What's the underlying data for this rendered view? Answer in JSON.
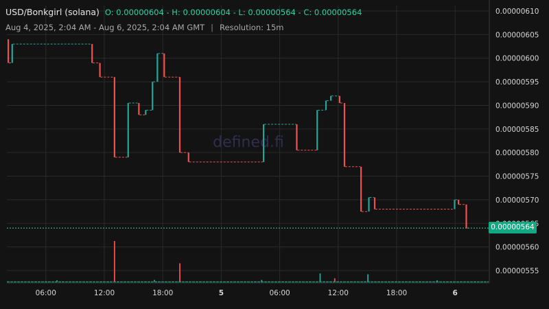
{
  "header": {
    "symbol": "USD/Bonkgirl (solana)",
    "ohlc": "O: 0.00000604 - H: 0.00000604 - L: 0.00000564 - C: 0.00000564",
    "range": "Aug 4, 2025, 2:04 AM - Aug 6, 2025, 2:04 AM GMT",
    "separator": "|",
    "resolution": "Resolution: 15m"
  },
  "watermark": "defined.fi",
  "current_price": "0.00000564",
  "colors": {
    "up": "#26a69a",
    "down": "#ef5350",
    "bg": "#131313",
    "grid": "#2a2a2a",
    "tag": "#11a882"
  },
  "y_axis": {
    "ticks": [
      "0.00000610",
      "0.00000605",
      "0.00000600",
      "0.00000595",
      "0.00000590",
      "0.00000585",
      "0.00000580",
      "0.00000575",
      "0.00000570",
      "0.00000565",
      "0.00000560",
      "0.00000555"
    ],
    "min": 5.5e-06,
    "max": 6.1e-06
  },
  "x_axis": {
    "ticks": [
      {
        "label": "06:00",
        "t": 4,
        "bold": false
      },
      {
        "label": "12:00",
        "t": 10,
        "bold": false
      },
      {
        "label": "18:00",
        "t": 16,
        "bold": false
      },
      {
        "label": "5",
        "t": 22,
        "bold": true
      },
      {
        "label": "06:00",
        "t": 28,
        "bold": false
      },
      {
        "label": "12:00",
        "t": 34,
        "bold": false
      },
      {
        "label": "18:00",
        "t": 40,
        "bold": false
      },
      {
        "label": "6",
        "t": 46,
        "bold": true
      }
    ]
  },
  "chart_data": {
    "type": "candlestick",
    "x_unit": "hours since Aug 4, 2025 02:04 GMT",
    "series": [
      {
        "t": 0.0,
        "o": 6.04,
        "c": 5.99
      },
      {
        "t": 0.4,
        "o": 5.99,
        "c": 6.03
      },
      {
        "t": 8.6,
        "o": 6.03,
        "c": 5.99
      },
      {
        "t": 9.4,
        "o": 5.99,
        "c": 5.96
      },
      {
        "t": 10.9,
        "o": 5.96,
        "c": 5.79
      },
      {
        "t": 12.3,
        "o": 5.79,
        "c": 5.905
      },
      {
        "t": 13.4,
        "o": 5.905,
        "c": 5.88
      },
      {
        "t": 14.1,
        "o": 5.88,
        "c": 5.89
      },
      {
        "t": 14.8,
        "o": 5.89,
        "c": 5.95
      },
      {
        "t": 15.3,
        "o": 5.95,
        "c": 6.01
      },
      {
        "t": 16.0,
        "o": 6.01,
        "c": 5.96
      },
      {
        "t": 17.6,
        "o": 5.96,
        "c": 5.8
      },
      {
        "t": 18.5,
        "o": 5.8,
        "c": 5.78
      },
      {
        "t": 26.2,
        "o": 5.78,
        "c": 5.86
      },
      {
        "t": 29.6,
        "o": 5.86,
        "c": 5.805
      },
      {
        "t": 31.7,
        "o": 5.805,
        "c": 5.89
      },
      {
        "t": 32.6,
        "o": 5.89,
        "c": 5.91
      },
      {
        "t": 33.1,
        "o": 5.91,
        "c": 5.92
      },
      {
        "t": 34.0,
        "o": 5.92,
        "c": 5.905
      },
      {
        "t": 34.5,
        "o": 5.905,
        "c": 5.77
      },
      {
        "t": 36.2,
        "o": 5.77,
        "c": 5.675
      },
      {
        "t": 37.0,
        "o": 5.675,
        "c": 5.705
      },
      {
        "t": 37.6,
        "o": 5.705,
        "c": 5.68
      },
      {
        "t": 45.8,
        "o": 5.68,
        "c": 5.7
      },
      {
        "t": 46.2,
        "o": 5.7,
        "c": 5.69
      },
      {
        "t": 47.0,
        "o": 5.69,
        "c": 5.64
      }
    ],
    "volume_spikes": [
      {
        "t": 10.9,
        "v": 1.0,
        "up": false
      },
      {
        "t": 17.6,
        "v": 0.45,
        "up": false
      },
      {
        "t": 32.0,
        "v": 0.2,
        "up": true
      },
      {
        "t": 33.5,
        "v": 0.08,
        "up": false
      },
      {
        "t": 36.9,
        "v": 0.18,
        "up": true
      },
      {
        "t": 5.0,
        "v": 0.03,
        "up": true
      },
      {
        "t": 15.0,
        "v": 0.04,
        "up": true
      },
      {
        "t": 26.0,
        "v": 0.04,
        "up": true
      },
      {
        "t": 44.0,
        "v": 0.03,
        "up": true
      }
    ]
  }
}
